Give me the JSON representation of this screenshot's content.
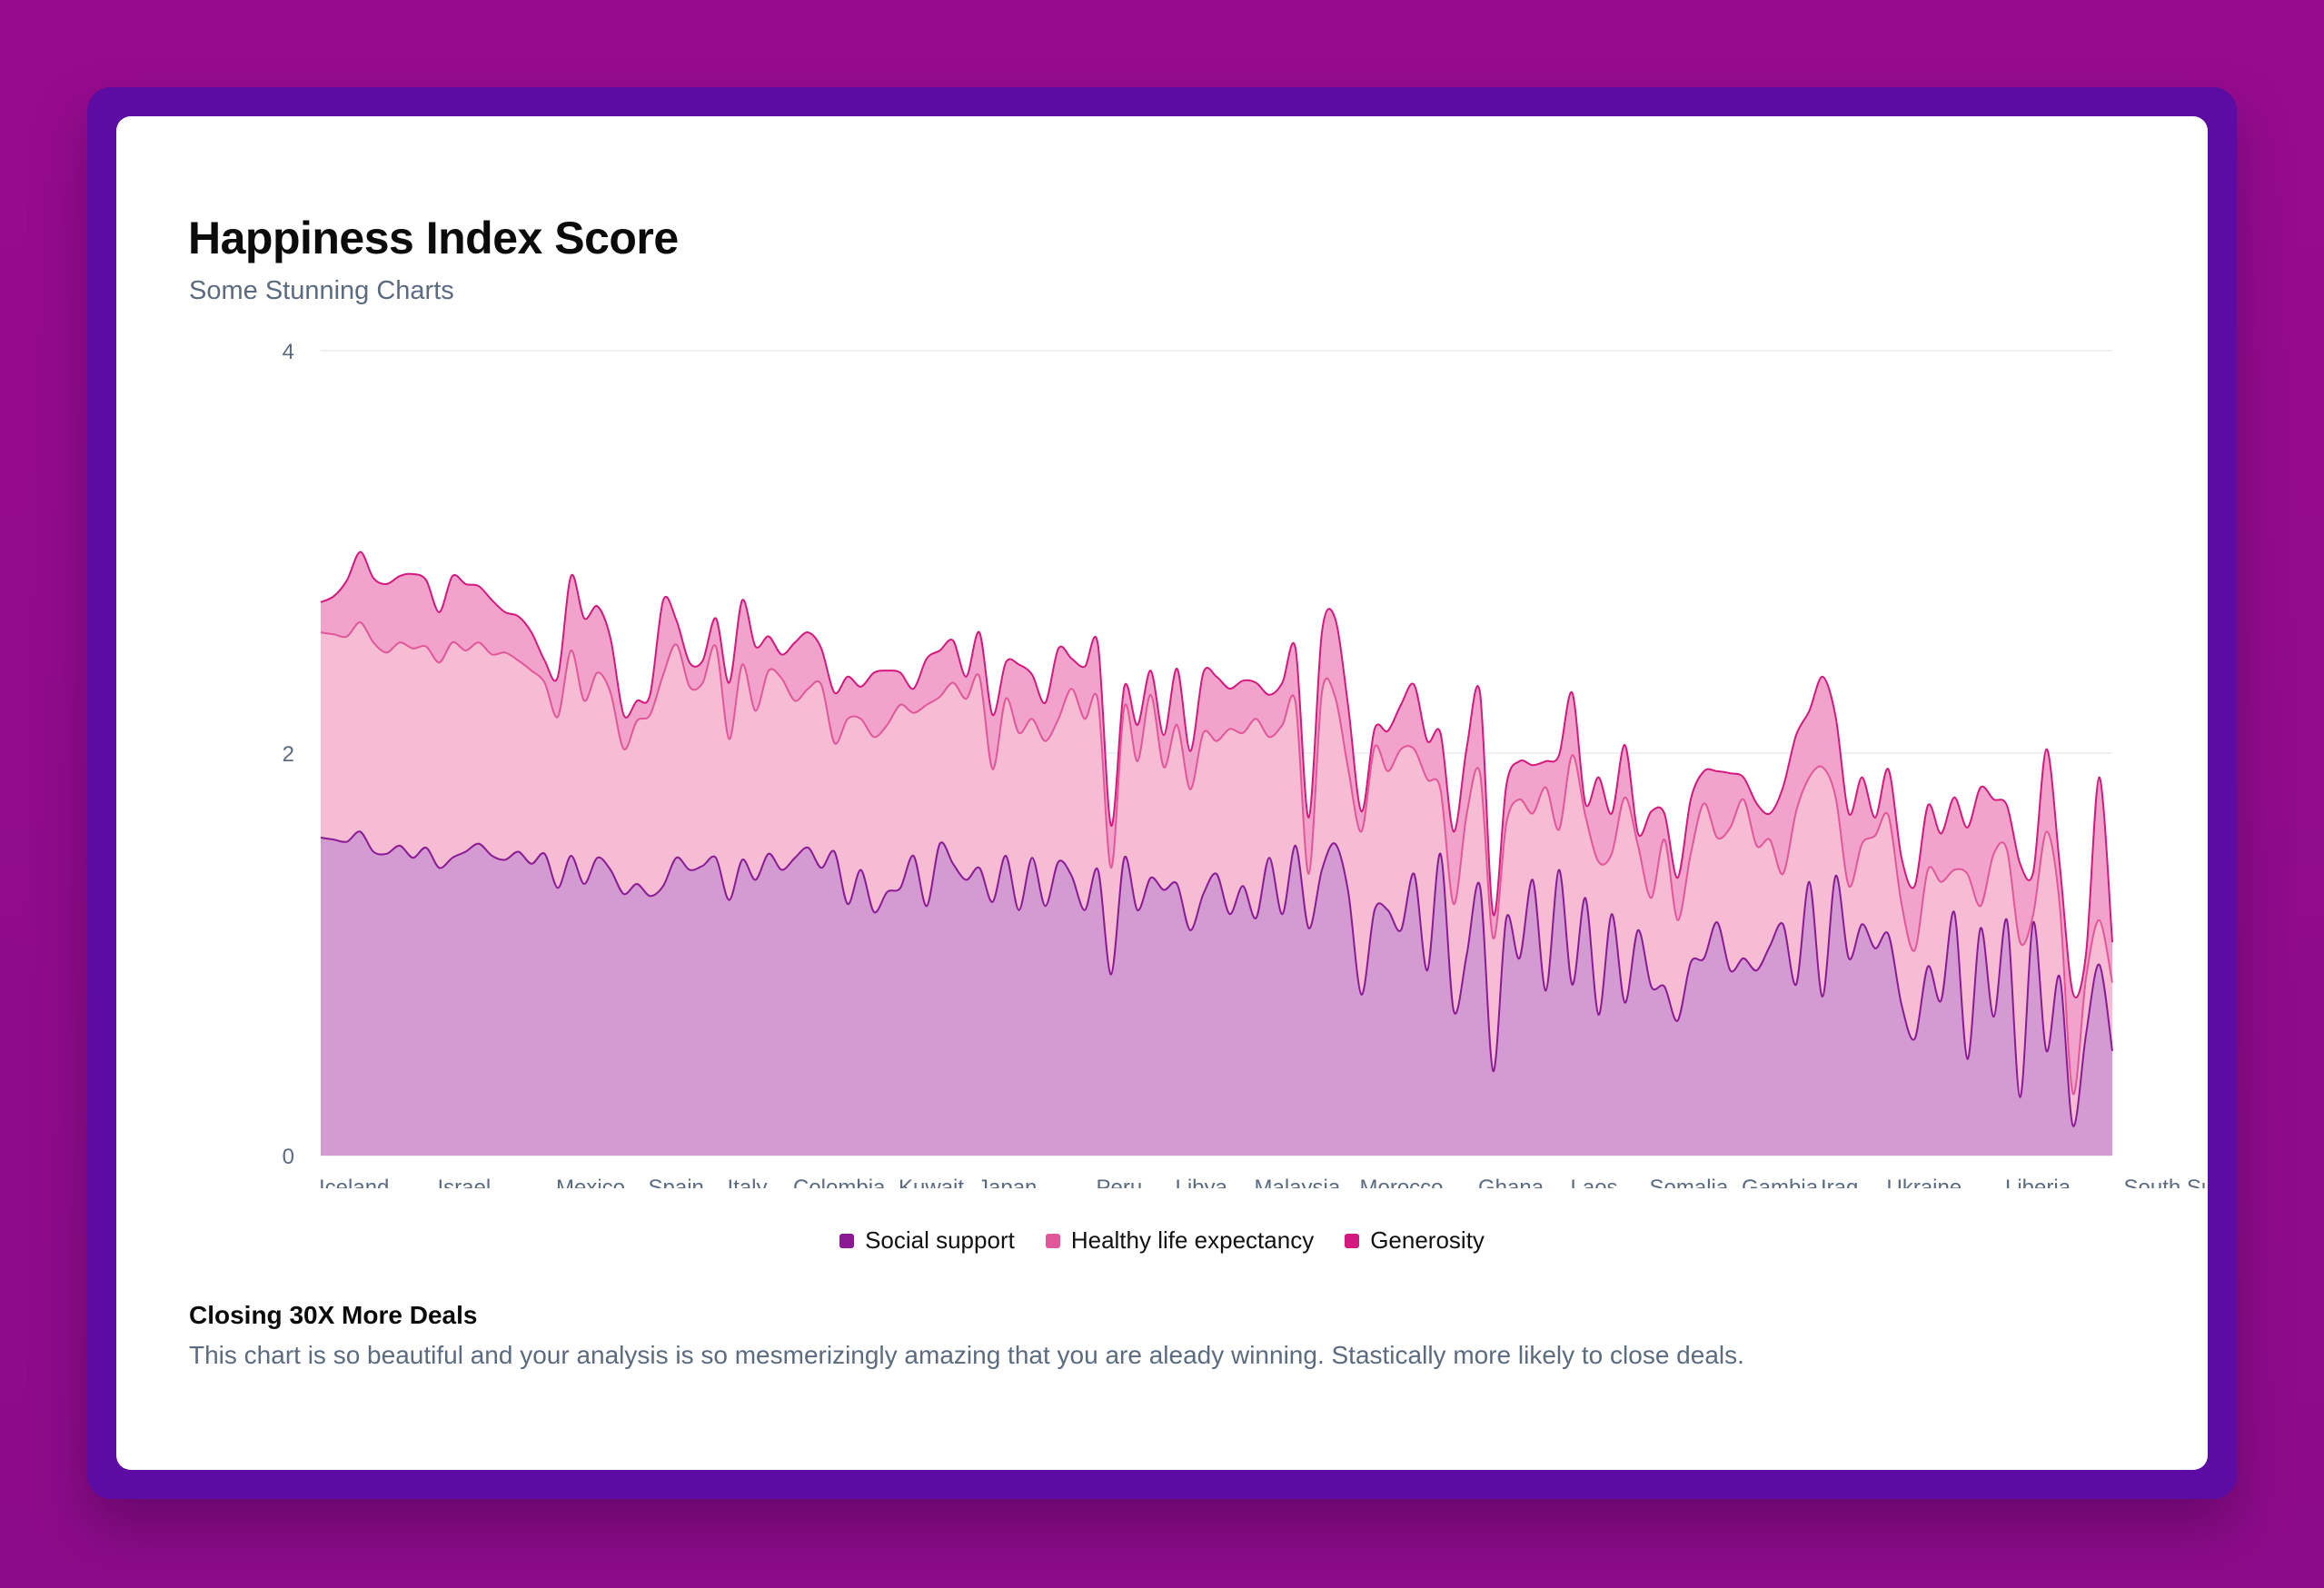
{
  "card": {
    "title": "Happiness Index Score",
    "subtitle": "Some Stunning Charts",
    "footer_title": "Closing 30X More Deals",
    "footer_text": "This chart is so beautiful and your analysis is so mesmerizingly amazing that you are aleady winning. Stastically more likely to close deals."
  },
  "colors": {
    "background": "#970b90",
    "frame": "#5c0ca3",
    "social_support": "#8b1a94",
    "healthy_life": "#e2579a",
    "generosity": "#d4197e"
  },
  "chart_data": {
    "type": "area",
    "stacked": true,
    "smooth": true,
    "ylim": [
      0,
      4
    ],
    "yticks": [
      0,
      2,
      4
    ],
    "grid": true,
    "legend_position": "bottom",
    "x_tick_labels": [
      "Iceland",
      "Israel",
      "Mexico",
      "Spain",
      "Italy",
      "Colombia",
      "Kuwait",
      "Japan",
      "Peru",
      "Libya",
      "Malaysia",
      "Morocco",
      "Ghana",
      "Laos",
      "Somalia",
      "Gambia",
      "Iraq",
      "Ukraine",
      "Liberia",
      "South Sudan"
    ],
    "x_tick_positions": [
      0,
      9,
      18,
      25,
      31,
      36,
      44,
      50,
      59,
      65,
      71,
      79,
      88,
      95,
      101,
      108,
      114,
      119,
      128,
      137
    ],
    "series": [
      {
        "name": "Social support",
        "color": "#8b1a94",
        "values": [
          1.58,
          1.57,
          1.56,
          1.61,
          1.51,
          1.5,
          1.54,
          1.48,
          1.53,
          1.43,
          1.48,
          1.51,
          1.55,
          1.49,
          1.47,
          1.51,
          1.45,
          1.5,
          1.33,
          1.49,
          1.35,
          1.48,
          1.42,
          1.3,
          1.35,
          1.29,
          1.34,
          1.48,
          1.42,
          1.44,
          1.48,
          1.27,
          1.47,
          1.37,
          1.5,
          1.42,
          1.48,
          1.53,
          1.43,
          1.51,
          1.25,
          1.42,
          1.21,
          1.31,
          1.33,
          1.49,
          1.24,
          1.55,
          1.45,
          1.37,
          1.43,
          1.26,
          1.49,
          1.22,
          1.48,
          1.24,
          1.46,
          1.39,
          1.22,
          1.42,
          0.9,
          1.48,
          1.22,
          1.38,
          1.32,
          1.35,
          1.12,
          1.3,
          1.4,
          1.2,
          1.34,
          1.18,
          1.48,
          1.2,
          1.54,
          1.13,
          1.42,
          1.55,
          1.31,
          0.8,
          1.22,
          1.22,
          1.12,
          1.4,
          0.92,
          1.5,
          0.72,
          1.0,
          1.34,
          0.42,
          1.18,
          0.98,
          1.37,
          0.82,
          1.42,
          0.85,
          1.28,
          0.7,
          1.2,
          0.76,
          1.12,
          0.84,
          0.84,
          0.67,
          0.96,
          0.98,
          1.16,
          0.92,
          0.98,
          0.92,
          1.04,
          1.15,
          0.85,
          1.36,
          0.79,
          1.39,
          0.98,
          1.15,
          1.03,
          1.1,
          0.75,
          0.58,
          0.94,
          0.77,
          1.21,
          0.48,
          1.13,
          0.69,
          1.17,
          0.29,
          1.16,
          0.52,
          0.89,
          0.15,
          0.6,
          0.95,
          0.52
        ]
      },
      {
        "name": "Healthy life expectancy",
        "color": "#e2579a",
        "values": [
          1.02,
          1.02,
          1.02,
          1.04,
          1.04,
          1.0,
          1.01,
          1.04,
          1.0,
          1.02,
          1.07,
          1.0,
          1.0,
          1.0,
          1.03,
          0.95,
          0.96,
          0.85,
          0.85,
          1.02,
          0.91,
          0.92,
          0.88,
          0.72,
          0.81,
          0.9,
          1.05,
          1.06,
          0.91,
          0.91,
          1.05,
          0.8,
          0.97,
          0.84,
          0.91,
          0.95,
          0.78,
          0.79,
          0.91,
          0.54,
          0.92,
          0.75,
          0.87,
          0.83,
          0.91,
          0.71,
          1.0,
          0.73,
          0.9,
          0.9,
          0.95,
          0.66,
          0.78,
          0.88,
          0.69,
          0.82,
          0.71,
          0.93,
          0.95,
          0.84,
          0.53,
          0.75,
          0.74,
          0.91,
          0.61,
          0.79,
          0.7,
          0.8,
          0.66,
          0.92,
          0.76,
          0.99,
          0.6,
          0.94,
          0.71,
          0.27,
          0.88,
          0.73,
          0.61,
          0.81,
          0.81,
          0.69,
          0.9,
          0.62,
          0.95,
          0.32,
          0.53,
          0.7,
          0.56,
          0.66,
          0.47,
          0.79,
          0.33,
          1.01,
          0.2,
          1.14,
          0.41,
          0.76,
          0.3,
          1.02,
          0.42,
          0.44,
          0.73,
          0.5,
          0.54,
          0.77,
          0.42,
          0.71,
          0.79,
          0.62,
          0.53,
          0.25,
          0.86,
          0.52,
          1.14,
          0.39,
          0.36,
          0.4,
          0.56,
          0.59,
          0.5,
          0.44,
          0.48,
          0.59,
          0.21,
          0.92,
          0.11,
          0.81,
          0.35,
          0.77,
          0.04,
          1.09,
          0.36,
          0.16,
          0.28,
          0.22,
          0.34
        ]
      },
      {
        "name": "Generosity",
        "color": "#d4197e",
        "values": [
          0.15,
          0.19,
          0.28,
          0.35,
          0.32,
          0.34,
          0.33,
          0.37,
          0.33,
          0.25,
          0.33,
          0.33,
          0.28,
          0.27,
          0.2,
          0.22,
          0.19,
          0.11,
          0.2,
          0.37,
          0.41,
          0.33,
          0.27,
          0.17,
          0.1,
          0.1,
          0.37,
          0.12,
          0.12,
          0.11,
          0.14,
          0.28,
          0.32,
          0.32,
          0.17,
          0.12,
          0.29,
          0.28,
          0.18,
          0.25,
          0.21,
          0.16,
          0.32,
          0.27,
          0.16,
          0.12,
          0.23,
          0.23,
          0.21,
          0.11,
          0.22,
          0.27,
          0.18,
          0.34,
          0.22,
          0.19,
          0.35,
          0.15,
          0.26,
          0.28,
          0.21,
          0.1,
          0.18,
          0.12,
          0.16,
          0.28,
          0.19,
          0.3,
          0.32,
          0.2,
          0.26,
          0.18,
          0.21,
          0.21,
          0.27,
          0.28,
          0.3,
          0.39,
          0.31,
          0.1,
          0.09,
          0.2,
          0.22,
          0.32,
          0.19,
          0.28,
          0.36,
          0.33,
          0.4,
          0.12,
          0.19,
          0.19,
          0.24,
          0.13,
          0.37,
          0.31,
          0.06,
          0.42,
          0.2,
          0.26,
          0.06,
          0.43,
          0.13,
          0.21,
          0.27,
          0.16,
          0.33,
          0.27,
          0.11,
          0.21,
          0.13,
          0.43,
          0.38,
          0.33,
          0.45,
          0.4,
          0.36,
          0.33,
          0.09,
          0.23,
          0.23,
          0.32,
          0.32,
          0.24,
          0.36,
          0.23,
          0.59,
          0.27,
          0.22,
          0.39,
          0.21,
          0.41,
          0.2,
          0.5,
          0.12,
          0.71,
          0.2
        ]
      }
    ]
  },
  "legend": [
    {
      "label": "Social support",
      "color": "#8b1a94"
    },
    {
      "label": "Healthy life expectancy",
      "color": "#e2579a"
    },
    {
      "label": "Generosity",
      "color": "#d4197e"
    }
  ]
}
